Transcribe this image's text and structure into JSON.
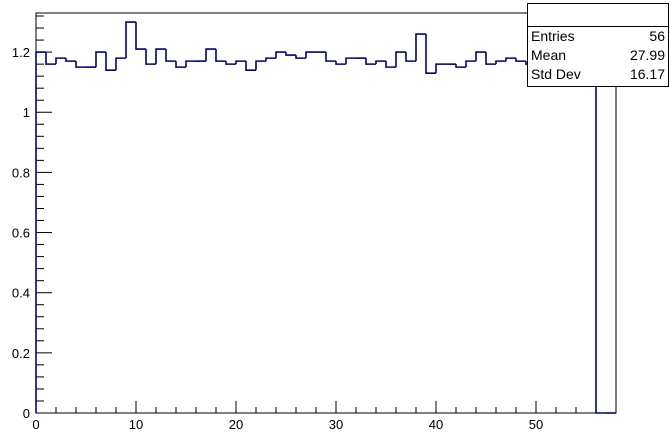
{
  "chart_data": {
    "type": "bar",
    "title": "",
    "xlabel": "",
    "ylabel": "",
    "xlim": [
      0,
      58
    ],
    "ylim": [
      0,
      1.33
    ],
    "grid": false,
    "line_color": "#000080",
    "x_ticks": [
      0,
      10,
      20,
      30,
      40,
      50
    ],
    "x_tick_labels": [
      "0",
      "10",
      "20",
      "30",
      "40",
      "50"
    ],
    "y_ticks": [
      0,
      0.2,
      0.4,
      0.6,
      0.8,
      1,
      1.2
    ],
    "y_tick_labels": [
      "0",
      "0.2",
      "0.4",
      "0.6",
      "0.8",
      "1",
      "1.2"
    ],
    "bin_low_edges": [
      0,
      1,
      2,
      3,
      4,
      5,
      6,
      7,
      8,
      9,
      10,
      11,
      12,
      13,
      14,
      15,
      16,
      17,
      18,
      19,
      20,
      21,
      22,
      23,
      24,
      25,
      26,
      27,
      28,
      29,
      30,
      31,
      32,
      33,
      34,
      35,
      36,
      37,
      38,
      39,
      40,
      41,
      42,
      43,
      44,
      45,
      46,
      47,
      48,
      49,
      50,
      51,
      52,
      53,
      54,
      55,
      56,
      57
    ],
    "bin_width": 1,
    "values": [
      1.2,
      1.16,
      1.18,
      1.17,
      1.15,
      1.15,
      1.2,
      1.14,
      1.18,
      1.3,
      1.21,
      1.16,
      1.21,
      1.17,
      1.15,
      1.17,
      1.17,
      1.21,
      1.17,
      1.16,
      1.17,
      1.14,
      1.17,
      1.18,
      1.2,
      1.19,
      1.18,
      1.2,
      1.2,
      1.17,
      1.16,
      1.18,
      1.18,
      1.16,
      1.17,
      1.15,
      1.2,
      1.17,
      1.26,
      1.13,
      1.16,
      1.16,
      1.15,
      1.17,
      1.2,
      1.16,
      1.17,
      1.18,
      1.17,
      1.16,
      1.17,
      1.17,
      1.18,
      1.17,
      1.17,
      1.17,
      0,
      0
    ]
  },
  "stats": {
    "entries_label": "Entries",
    "entries_value": "56",
    "mean_label": "Mean",
    "mean_value": "27.99",
    "stddev_label": "Std Dev",
    "stddev_value": "16.17"
  }
}
